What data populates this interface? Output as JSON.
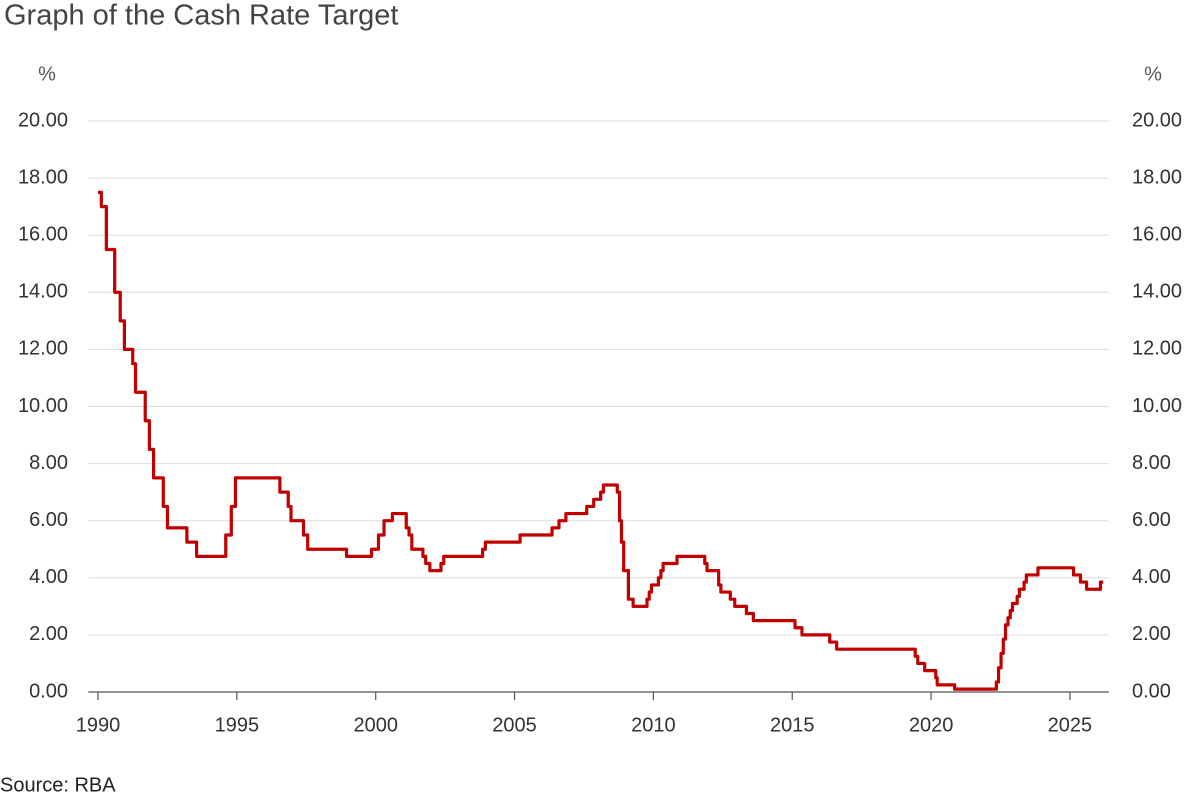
{
  "chart_data": {
    "type": "line",
    "title": "Graph of the Cash Rate Target",
    "source": "Source: RBA",
    "y_label": "%",
    "y2_label": "%",
    "xlim": [
      1989.65,
      2026.4
    ],
    "xticks": [
      1990,
      1995,
      2000,
      2005,
      2010,
      2015,
      2020,
      2025
    ],
    "ylim": [
      0,
      20
    ],
    "yticks": [
      {
        "value": 0,
        "label": "0.00"
      },
      {
        "value": 2,
        "label": "2.00"
      },
      {
        "value": 4,
        "label": "4.00"
      },
      {
        "value": 6,
        "label": "6.00"
      },
      {
        "value": 8,
        "label": "8.00"
      },
      {
        "value": 10,
        "label": "10.00"
      },
      {
        "value": 12,
        "label": "12.00"
      },
      {
        "value": 14,
        "label": "14.00"
      },
      {
        "value": 16,
        "label": "16.00"
      },
      {
        "value": 18,
        "label": "18.00"
      },
      {
        "value": 20,
        "label": "20.00"
      }
    ],
    "y2lim": [
      0,
      20
    ],
    "y2ticks": [
      {
        "value": 0,
        "label": "0.00"
      },
      {
        "value": 2,
        "label": "2.00"
      },
      {
        "value": 4,
        "label": "4.00"
      },
      {
        "value": 6,
        "label": "6.00"
      },
      {
        "value": 8,
        "label": "8.00"
      },
      {
        "value": 10,
        "label": "10.00"
      },
      {
        "value": 12,
        "label": "12.00"
      },
      {
        "value": 14,
        "label": "14.00"
      },
      {
        "value": 16,
        "label": "16.00"
      },
      {
        "value": 18,
        "label": "18.00"
      },
      {
        "value": 20,
        "label": "20.00"
      }
    ],
    "grid": true,
    "series": [
      {
        "color": "#c00000",
        "x": [
          1990.0,
          1990.12,
          1990.12,
          1990.3,
          1990.3,
          1990.6,
          1990.6,
          1990.8,
          1990.8,
          1990.95,
          1990.95,
          1991.25,
          1991.25,
          1991.35,
          1991.35,
          1991.7,
          1991.7,
          1991.85,
          1991.85,
          1992.0,
          1992.0,
          1992.35,
          1992.35,
          1992.5,
          1992.5,
          1993.2,
          1993.2,
          1993.55,
          1993.55,
          1994.6,
          1994.6,
          1994.8,
          1994.8,
          1994.95,
          1994.95,
          1996.55,
          1996.55,
          1996.85,
          1996.85,
          1996.95,
          1996.95,
          1997.4,
          1997.4,
          1997.55,
          1997.55,
          1998.95,
          1998.95,
          1999.85,
          1999.85,
          2000.1,
          2000.1,
          2000.3,
          2000.3,
          2000.6,
          2000.6,
          2001.1,
          2001.1,
          2001.2,
          2001.2,
          2001.3,
          2001.3,
          2001.7,
          2001.7,
          2001.8,
          2001.8,
          2001.95,
          2001.95,
          2002.35,
          2002.35,
          2002.45,
          2002.45,
          2003.85,
          2003.85,
          2003.95,
          2003.95,
          2005.2,
          2005.2,
          2006.35,
          2006.35,
          2006.6,
          2006.6,
          2006.85,
          2006.85,
          2007.6,
          2007.6,
          2007.85,
          2007.85,
          2008.1,
          2008.1,
          2008.2,
          2008.2,
          2008.7,
          2008.7,
          2008.78,
          2008.78,
          2008.85,
          2008.85,
          2008.93,
          2008.93,
          2009.1,
          2009.1,
          2009.27,
          2009.27,
          2009.77,
          2009.77,
          2009.85,
          2009.85,
          2009.93,
          2009.93,
          2010.18,
          2010.18,
          2010.27,
          2010.27,
          2010.35,
          2010.35,
          2010.85,
          2010.85,
          2011.85,
          2011.85,
          2011.93,
          2011.93,
          2012.35,
          2012.35,
          2012.43,
          2012.43,
          2012.77,
          2012.77,
          2012.93,
          2012.93,
          2013.35,
          2013.35,
          2013.6,
          2013.6,
          2015.1,
          2015.1,
          2015.35,
          2015.35,
          2016.35,
          2016.35,
          2016.6,
          2016.6,
          2019.43,
          2019.43,
          2019.52,
          2019.52,
          2019.77,
          2019.77,
          2020.17,
          2020.17,
          2020.22,
          2020.22,
          2020.85,
          2020.85,
          2022.35,
          2022.35,
          2022.43,
          2022.43,
          2022.52,
          2022.52,
          2022.6,
          2022.6,
          2022.68,
          2022.68,
          2022.77,
          2022.77,
          2022.85,
          2022.85,
          2022.93,
          2022.93,
          2023.1,
          2023.1,
          2023.18,
          2023.18,
          2023.35,
          2023.35,
          2023.43,
          2023.43,
          2023.85,
          2023.85,
          2025.13,
          2025.13,
          2025.38,
          2025.38,
          2025.6,
          2025.6,
          2026.1,
          2026.1,
          2026.2
        ],
        "values": [
          17.5,
          17.5,
          17.0,
          17.0,
          15.5,
          15.5,
          14.0,
          14.0,
          13.0,
          13.0,
          12.0,
          12.0,
          11.5,
          11.5,
          10.5,
          10.5,
          9.5,
          9.5,
          8.5,
          8.5,
          7.5,
          7.5,
          6.5,
          6.5,
          5.75,
          5.75,
          5.25,
          5.25,
          4.75,
          4.75,
          5.5,
          5.5,
          6.5,
          6.5,
          7.5,
          7.5,
          7.0,
          7.0,
          6.5,
          6.5,
          6.0,
          6.0,
          5.5,
          5.5,
          5.0,
          5.0,
          4.75,
          4.75,
          5.0,
          5.0,
          5.5,
          5.5,
          6.0,
          6.0,
          6.25,
          6.25,
          5.75,
          5.75,
          5.5,
          5.5,
          5.0,
          5.0,
          4.75,
          4.75,
          4.5,
          4.5,
          4.25,
          4.25,
          4.5,
          4.5,
          4.75,
          4.75,
          5.0,
          5.0,
          5.25,
          5.25,
          5.5,
          5.5,
          5.75,
          5.75,
          6.0,
          6.0,
          6.25,
          6.25,
          6.5,
          6.5,
          6.75,
          6.75,
          7.0,
          7.0,
          7.25,
          7.25,
          7.0,
          7.0,
          6.0,
          6.0,
          5.25,
          5.25,
          4.25,
          4.25,
          3.25,
          3.25,
          3.0,
          3.0,
          3.25,
          3.25,
          3.5,
          3.5,
          3.75,
          3.75,
          4.0,
          4.0,
          4.25,
          4.25,
          4.5,
          4.5,
          4.75,
          4.75,
          4.5,
          4.5,
          4.25,
          4.25,
          3.75,
          3.75,
          3.5,
          3.5,
          3.25,
          3.25,
          3.0,
          3.0,
          2.75,
          2.75,
          2.5,
          2.5,
          2.25,
          2.25,
          2.0,
          2.0,
          1.75,
          1.75,
          1.5,
          1.5,
          1.25,
          1.25,
          1.0,
          1.0,
          0.75,
          0.75,
          0.5,
          0.5,
          0.25,
          0.25,
          0.1,
          0.1,
          0.35,
          0.35,
          0.85,
          0.85,
          1.35,
          1.35,
          1.85,
          1.85,
          2.35,
          2.35,
          2.6,
          2.6,
          2.85,
          2.85,
          3.1,
          3.1,
          3.35,
          3.35,
          3.6,
          3.6,
          3.85,
          3.85,
          4.1,
          4.1,
          4.35,
          4.35,
          4.1,
          4.1,
          3.85,
          3.85,
          3.6,
          3.6,
          3.85,
          3.85
        ]
      }
    ]
  }
}
